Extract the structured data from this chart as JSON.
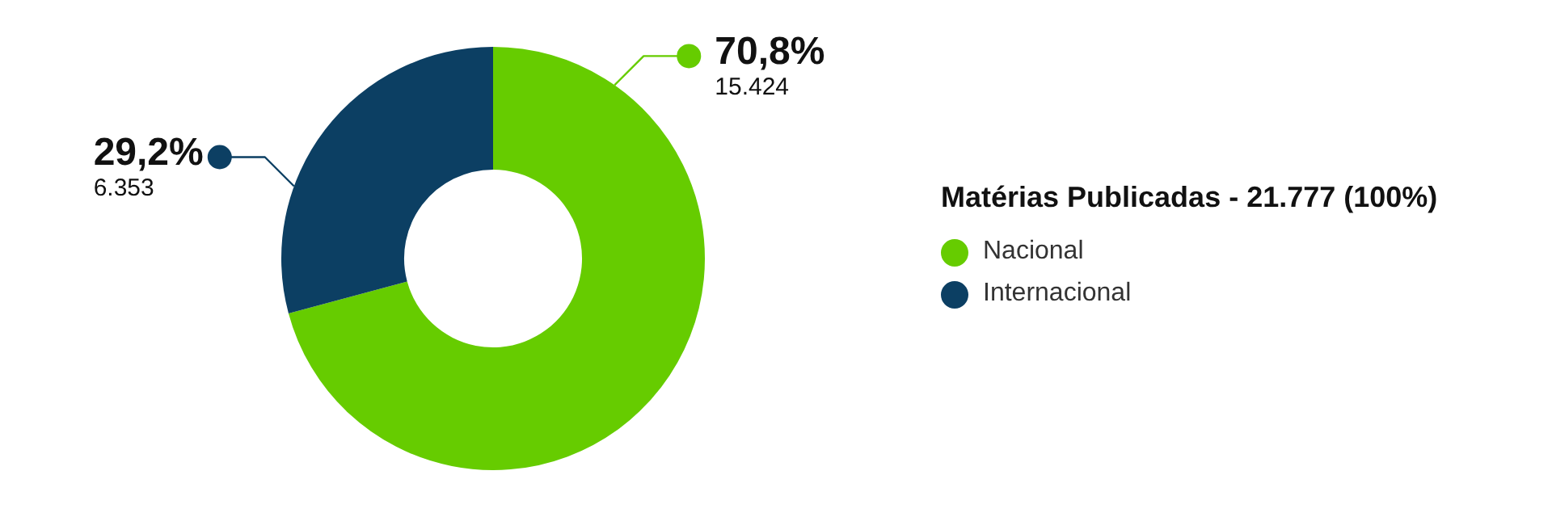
{
  "chart_data": {
    "type": "donut",
    "categories": [
      "Nacional",
      "Internacional"
    ],
    "values": [
      15424,
      6353
    ],
    "colors": [
      "#66cc00",
      "#0c3f63"
    ],
    "value_labels": [
      "15.424",
      "6.353"
    ],
    "annotations": [
      {
        "text": "70,8%",
        "x": "Nacional"
      },
      {
        "text": "29,2%",
        "x": "Internacional"
      }
    ],
    "legend_title": "Matérias Publicadas - 21.777 (100%)",
    "legend": "right"
  }
}
